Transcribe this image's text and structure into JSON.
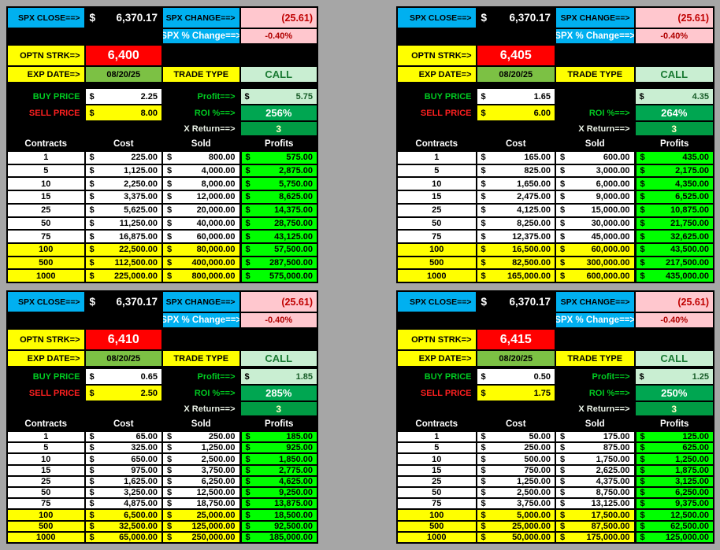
{
  "labels": {
    "spx_close": "SPX CLOSE==>",
    "spx_change": "SPX CHANGE==>",
    "spx_pct_change": "SPX % Change==>",
    "optn_strk": "OPTN STRK=>",
    "exp_date": "EXP DATE=>",
    "trade_type": "TRADE TYPE",
    "buy_price": "BUY PRICE",
    "sell_price": "SELL PRICE",
    "roi": "ROI %==>",
    "x_return": "X Return==>",
    "dollar": "$",
    "headers": [
      "Contracts",
      "Cost",
      "Sold",
      "Profits"
    ]
  },
  "colors": {
    "label_blue": "#00B0F0",
    "value_pink": "#FFC7CE",
    "highlight_yellow": "#FFFF00",
    "strike_red": "#FF0000",
    "date_green": "#7CC144",
    "call_green_bg": "#C9EED2",
    "roi_green": "#00A651",
    "profit_lime": "#00FF00",
    "negative_red": "#C00000"
  },
  "panels": [
    {
      "spx_close": "6,370.17",
      "spx_change": "(25.61)",
      "spx_pct_change": "-0.40%",
      "strike": "6,400",
      "exp_date": "08/20/25",
      "trade_type": "CALL",
      "buy_price": "2.25",
      "sell_price": "8.00",
      "profit_label": "Profit==>",
      "profit": "5.75",
      "roi": "256%",
      "x_return": "3",
      "rows": [
        {
          "contracts": "1",
          "cost": "225.00",
          "sold": "800.00",
          "profits": "575.00",
          "hl": false
        },
        {
          "contracts": "5",
          "cost": "1,125.00",
          "sold": "4,000.00",
          "profits": "2,875.00",
          "hl": false
        },
        {
          "contracts": "10",
          "cost": "2,250.00",
          "sold": "8,000.00",
          "profits": "5,750.00",
          "hl": false
        },
        {
          "contracts": "15",
          "cost": "3,375.00",
          "sold": "12,000.00",
          "profits": "8,625.00",
          "hl": false
        },
        {
          "contracts": "25",
          "cost": "5,625.00",
          "sold": "20,000.00",
          "profits": "14,375.00",
          "hl": false
        },
        {
          "contracts": "50",
          "cost": "11,250.00",
          "sold": "40,000.00",
          "profits": "28,750.00",
          "hl": false
        },
        {
          "contracts": "75",
          "cost": "16,875.00",
          "sold": "60,000.00",
          "profits": "43,125.00",
          "hl": false
        },
        {
          "contracts": "100",
          "cost": "22,500.00",
          "sold": "80,000.00",
          "profits": "57,500.00",
          "hl": true
        },
        {
          "contracts": "500",
          "cost": "112,500.00",
          "sold": "400,000.00",
          "profits": "287,500.00",
          "hl": true
        },
        {
          "contracts": "1000",
          "cost": "225,000.00",
          "sold": "800,000.00",
          "profits": "575,000.00",
          "hl": true
        }
      ]
    },
    {
      "spx_close": "6,370.17",
      "spx_change": "(25.61)",
      "spx_pct_change": "-0.40%",
      "strike": "6,405",
      "exp_date": "08/20/25",
      "trade_type": "CALL",
      "buy_price": "1.65",
      "sell_price": "6.00",
      "profit_label": "",
      "profit": "4.35",
      "roi": "264%",
      "x_return": "3",
      "rows": [
        {
          "contracts": "1",
          "cost": "165.00",
          "sold": "600.00",
          "profits": "435.00",
          "hl": false
        },
        {
          "contracts": "5",
          "cost": "825.00",
          "sold": "3,000.00",
          "profits": "2,175.00",
          "hl": false
        },
        {
          "contracts": "10",
          "cost": "1,650.00",
          "sold": "6,000.00",
          "profits": "4,350.00",
          "hl": false
        },
        {
          "contracts": "15",
          "cost": "2,475.00",
          "sold": "9,000.00",
          "profits": "6,525.00",
          "hl": false
        },
        {
          "contracts": "25",
          "cost": "4,125.00",
          "sold": "15,000.00",
          "profits": "10,875.00",
          "hl": false
        },
        {
          "contracts": "50",
          "cost": "8,250.00",
          "sold": "30,000.00",
          "profits": "21,750.00",
          "hl": false
        },
        {
          "contracts": "75",
          "cost": "12,375.00",
          "sold": "45,000.00",
          "profits": "32,625.00",
          "hl": false
        },
        {
          "contracts": "100",
          "cost": "16,500.00",
          "sold": "60,000.00",
          "profits": "43,500.00",
          "hl": true
        },
        {
          "contracts": "500",
          "cost": "82,500.00",
          "sold": "300,000.00",
          "profits": "217,500.00",
          "hl": true
        },
        {
          "contracts": "1000",
          "cost": "165,000.00",
          "sold": "600,000.00",
          "profits": "435,000.00",
          "hl": true
        }
      ]
    },
    {
      "spx_close": "6,370.17",
      "spx_change": "(25.61)",
      "spx_pct_change": "-0.40%",
      "strike": "6,410",
      "exp_date": "08/20/25",
      "trade_type": "CALL",
      "buy_price": "0.65",
      "sell_price": "2.50",
      "profit_label": "Profit==>",
      "profit": "1.85",
      "roi": "285%",
      "x_return": "3",
      "rows": [
        {
          "contracts": "1",
          "cost": "65.00",
          "sold": "250.00",
          "profits": "185.00",
          "hl": false
        },
        {
          "contracts": "5",
          "cost": "325.00",
          "sold": "1,250.00",
          "profits": "925.00",
          "hl": false
        },
        {
          "contracts": "10",
          "cost": "650.00",
          "sold": "2,500.00",
          "profits": "1,850.00",
          "hl": false
        },
        {
          "contracts": "15",
          "cost": "975.00",
          "sold": "3,750.00",
          "profits": "2,775.00",
          "hl": false
        },
        {
          "contracts": "25",
          "cost": "1,625.00",
          "sold": "6,250.00",
          "profits": "4,625.00",
          "hl": false
        },
        {
          "contracts": "50",
          "cost": "3,250.00",
          "sold": "12,500.00",
          "profits": "9,250.00",
          "hl": false
        },
        {
          "contracts": "75",
          "cost": "4,875.00",
          "sold": "18,750.00",
          "profits": "13,875.00",
          "hl": false
        },
        {
          "contracts": "100",
          "cost": "6,500.00",
          "sold": "25,000.00",
          "profits": "18,500.00",
          "hl": true
        },
        {
          "contracts": "500",
          "cost": "32,500.00",
          "sold": "125,000.00",
          "profits": "92,500.00",
          "hl": true
        },
        {
          "contracts": "1000",
          "cost": "65,000.00",
          "sold": "250,000.00",
          "profits": "185,000.00",
          "hl": true
        }
      ]
    },
    {
      "spx_close": "6,370.17",
      "spx_change": "(25.61)",
      "spx_pct_change": "-0.40%",
      "strike": "6,415",
      "exp_date": "08/20/25",
      "trade_type": "CALL",
      "buy_price": "0.50",
      "sell_price": "1.75",
      "profit_label": "Profit==>",
      "profit": "1.25",
      "roi": "250%",
      "x_return": "3",
      "rows": [
        {
          "contracts": "1",
          "cost": "50.00",
          "sold": "175.00",
          "profits": "125.00",
          "hl": false
        },
        {
          "contracts": "5",
          "cost": "250.00",
          "sold": "875.00",
          "profits": "625.00",
          "hl": false
        },
        {
          "contracts": "10",
          "cost": "500.00",
          "sold": "1,750.00",
          "profits": "1,250.00",
          "hl": false
        },
        {
          "contracts": "15",
          "cost": "750.00",
          "sold": "2,625.00",
          "profits": "1,875.00",
          "hl": false
        },
        {
          "contracts": "25",
          "cost": "1,250.00",
          "sold": "4,375.00",
          "profits": "3,125.00",
          "hl": false
        },
        {
          "contracts": "50",
          "cost": "2,500.00",
          "sold": "8,750.00",
          "profits": "6,250.00",
          "hl": false
        },
        {
          "contracts": "75",
          "cost": "3,750.00",
          "sold": "13,125.00",
          "profits": "9,375.00",
          "hl": false
        },
        {
          "contracts": "100",
          "cost": "5,000.00",
          "sold": "17,500.00",
          "profits": "12,500.00",
          "hl": true
        },
        {
          "contracts": "500",
          "cost": "25,000.00",
          "sold": "87,500.00",
          "profits": "62,500.00",
          "hl": true
        },
        {
          "contracts": "1000",
          "cost": "50,000.00",
          "sold": "175,000.00",
          "profits": "125,000.00",
          "hl": true
        }
      ]
    }
  ]
}
